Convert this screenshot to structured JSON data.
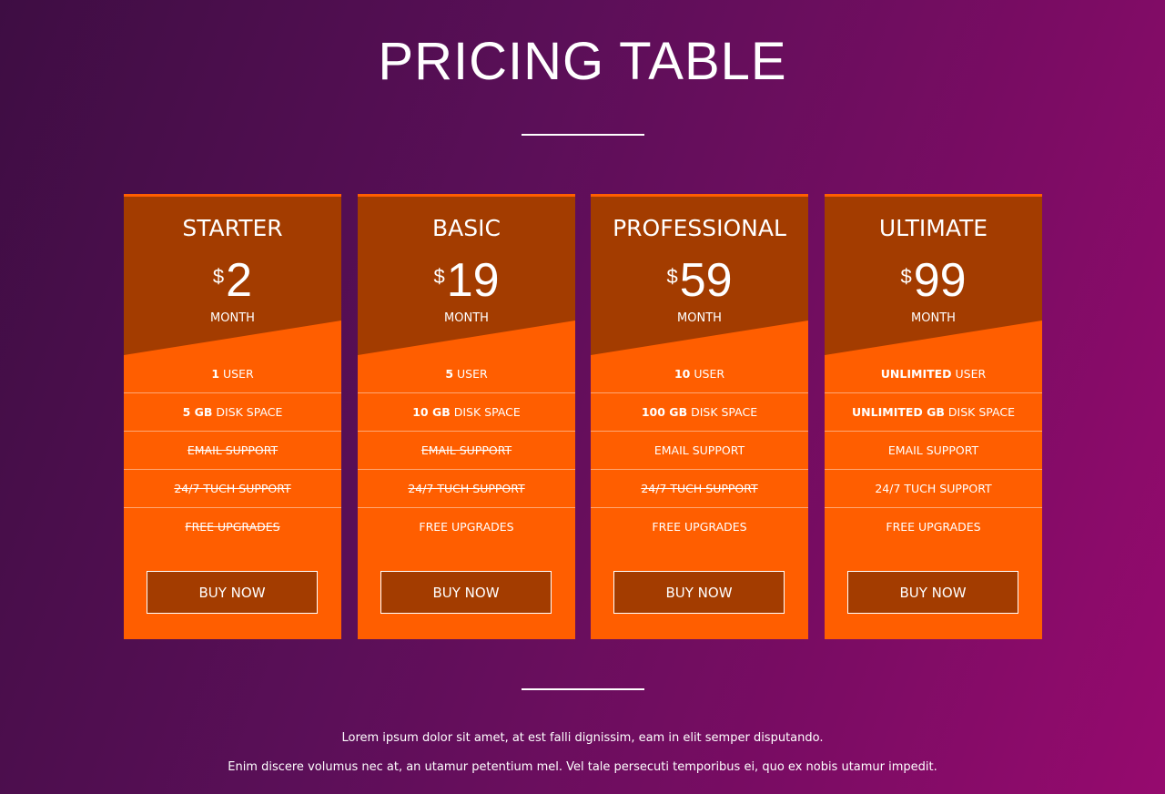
{
  "header": {
    "title": "PRICING TABLE"
  },
  "plans": [
    {
      "name": "STARTER",
      "currency": "$",
      "price": "2",
      "period": "MONTH",
      "features": [
        {
          "strong": "1",
          "text": "USER",
          "available": true
        },
        {
          "strong": "5 GB",
          "text": "DISK SPACE",
          "available": true
        },
        {
          "text": "EMAIL SUPPORT",
          "available": false
        },
        {
          "text": "24/7 TUCH SUPPORT",
          "available": false
        },
        {
          "text": "FREE UPGRADES",
          "available": false
        }
      ],
      "button": "BUY NOW"
    },
    {
      "name": "BASIC",
      "currency": "$",
      "price": "19",
      "period": "MONTH",
      "features": [
        {
          "strong": "5",
          "text": "USER",
          "available": true
        },
        {
          "strong": "10 GB",
          "text": "DISK SPACE",
          "available": true
        },
        {
          "text": "EMAIL SUPPORT",
          "available": false
        },
        {
          "text": "24/7 TUCH SUPPORT",
          "available": false
        },
        {
          "text": "FREE UPGRADES",
          "available": true
        }
      ],
      "button": "BUY NOW"
    },
    {
      "name": "PROFESSIONAL",
      "currency": "$",
      "price": "59",
      "period": "MONTH",
      "features": [
        {
          "strong": "10",
          "text": "USER",
          "available": true
        },
        {
          "strong": "100 GB",
          "text": "DISK SPACE",
          "available": true
        },
        {
          "text": "EMAIL SUPPORT",
          "available": true
        },
        {
          "text": "24/7 TUCH SUPPORT",
          "available": false
        },
        {
          "text": "FREE UPGRADES",
          "available": true
        }
      ],
      "button": "BUY NOW"
    },
    {
      "name": "ULTIMATE",
      "currency": "$",
      "price": "99",
      "period": "MONTH",
      "features": [
        {
          "strong": "UNLIMITED",
          "text": "USER",
          "available": true
        },
        {
          "strong": "UNLIMITED GB",
          "text": "DISK SPACE",
          "available": true
        },
        {
          "text": "EMAIL SUPPORT",
          "available": true
        },
        {
          "text": "24/7 TUCH SUPPORT",
          "available": true
        },
        {
          "text": "FREE UPGRADES",
          "available": true
        }
      ],
      "button": "BUY NOW"
    }
  ],
  "footer": {
    "lines": [
      "Lorem ipsum dolor sit amet, at est falli dignissim, eam in elit semper disputando.",
      "Enim discere volumus nec at, an utamur petentium mel. Vel tale persecuti temporibus ei, quo ex nobis utamur impedit."
    ]
  }
}
